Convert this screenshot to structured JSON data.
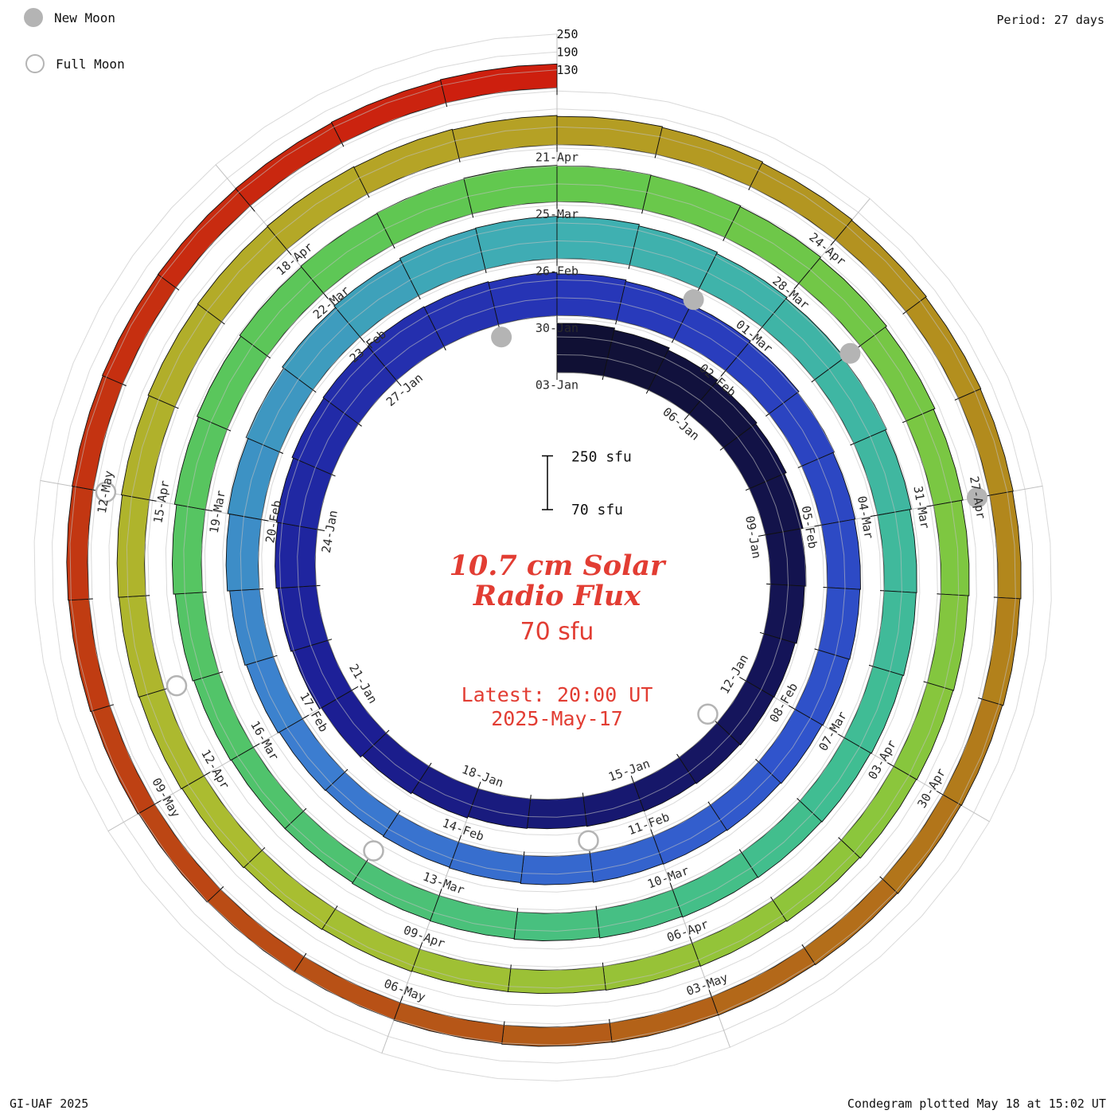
{
  "header": {
    "period": "Period: 27 days"
  },
  "legend": {
    "new_moon": "New Moon",
    "full_moon": "Full Moon"
  },
  "center": {
    "title_line1": "10.7 cm Solar",
    "title_line2": "Radio Flux",
    "flux_label": "70 sfu",
    "latest_line1": "Latest: 20:00 UT",
    "latest_line2": "2025-May-17"
  },
  "footer": {
    "left": "GI-UAF 2025",
    "right": "Condegram plotted May 18 at 15:02 UT"
  },
  "style": {
    "annotation_red": "#e23d33",
    "moon_gray": "#b4b4b4",
    "grid_gray": "#c0c0c0",
    "label_ink": "#2b2b2b"
  },
  "chart_data": {
    "type": "spiral-bar",
    "description": "Condegram: daily 10.7 cm solar radio flux plotted along a 27-day spiral, one bar per day, bar height = flux above 70 sfu baseline, color = date",
    "unit": "sfu",
    "start_date": "2025-01-03",
    "end_date": "2025-05-17",
    "days_per_revolution": 27,
    "baseline_value": 70,
    "grid_values": [
      70,
      130,
      190,
      250
    ],
    "radial_axis_values": [
      250,
      190,
      130
    ],
    "scale_bar": {
      "top_label": "250 sfu",
      "bottom_label": "70 sfu",
      "top_value": 250,
      "bottom_value": 70
    },
    "date_labels": [
      [
        0,
        "03-Jan"
      ],
      [
        3,
        "06-Jan"
      ],
      [
        6,
        "09-Jan"
      ],
      [
        9,
        "12-Jan"
      ],
      [
        12,
        "15-Jan"
      ],
      [
        15,
        "18-Jan"
      ],
      [
        18,
        "21-Jan"
      ],
      [
        21,
        "24-Jan"
      ],
      [
        24,
        "27-Jan"
      ],
      [
        27,
        "30-Jan"
      ],
      [
        30,
        "02-Feb"
      ],
      [
        33,
        "05-Feb"
      ],
      [
        36,
        "08-Feb"
      ],
      [
        39,
        "11-Feb"
      ],
      [
        42,
        "14-Feb"
      ],
      [
        45,
        "17-Feb"
      ],
      [
        48,
        "20-Feb"
      ],
      [
        51,
        "23-Feb"
      ],
      [
        54,
        "26-Feb"
      ],
      [
        57,
        "01-Mar"
      ],
      [
        60,
        "04-Mar"
      ],
      [
        63,
        "07-Mar"
      ],
      [
        66,
        "10-Mar"
      ],
      [
        69,
        "13-Mar"
      ],
      [
        72,
        "16-Mar"
      ],
      [
        75,
        "19-Mar"
      ],
      [
        78,
        "22-Mar"
      ],
      [
        81,
        "25-Mar"
      ],
      [
        84,
        "28-Mar"
      ],
      [
        87,
        "31-Mar"
      ],
      [
        90,
        "03-Apr"
      ],
      [
        93,
        "06-Apr"
      ],
      [
        96,
        "09-Apr"
      ],
      [
        99,
        "12-Apr"
      ],
      [
        102,
        "15-Apr"
      ],
      [
        105,
        "18-Apr"
      ],
      [
        108,
        "21-Apr"
      ],
      [
        111,
        "24-Apr"
      ],
      [
        114,
        "27-Apr"
      ],
      [
        117,
        "30-Apr"
      ],
      [
        120,
        "03-May"
      ],
      [
        123,
        "06-May"
      ],
      [
        126,
        "09-May"
      ],
      [
        129,
        "12-May"
      ]
    ],
    "moon_events": [
      {
        "day_index": 10,
        "phase": "full",
        "date": "2025-01-13"
      },
      {
        "day_index": 26,
        "phase": "new",
        "date": "2025-01-29"
      },
      {
        "day_index": 40,
        "phase": "full",
        "date": "2025-02-12"
      },
      {
        "day_index": 56,
        "phase": "new",
        "date": "2025-02-28"
      },
      {
        "day_index": 70,
        "phase": "full",
        "date": "2025-03-14"
      },
      {
        "day_index": 85,
        "phase": "new",
        "date": "2025-03-29"
      },
      {
        "day_index": 100,
        "phase": "full",
        "date": "2025-04-13"
      },
      {
        "day_index": 114,
        "phase": "new",
        "date": "2025-04-27"
      },
      {
        "day_index": 129,
        "phase": "full",
        "date": "2025-05-12"
      }
    ],
    "flux": [
      235,
      228,
      220,
      210,
      205,
      198,
      190,
      185,
      180,
      178,
      175,
      172,
      170,
      168,
      170,
      175,
      180,
      188,
      195,
      200,
      205,
      210,
      215,
      218,
      220,
      218,
      215,
      210,
      205,
      200,
      195,
      190,
      185,
      182,
      180,
      178,
      175,
      172,
      170,
      168,
      165,
      162,
      160,
      158,
      160,
      165,
      170,
      178,
      185,
      192,
      198,
      205,
      210,
      212,
      210,
      205,
      200,
      195,
      190,
      185,
      180,
      178,
      175,
      172,
      170,
      168,
      165,
      162,
      160,
      158,
      155,
      155,
      158,
      162,
      168,
      175,
      180,
      185,
      188,
      190,
      192,
      190,
      188,
      185,
      180,
      175,
      170,
      165,
      162,
      160,
      158,
      155,
      152,
      150,
      148,
      148,
      150,
      152,
      155,
      158,
      160,
      162,
      165,
      168,
      170,
      172,
      170,
      168,
      165,
      162,
      158,
      155,
      152,
      150,
      148,
      145,
      142,
      140,
      138,
      136,
      135,
      134,
      132,
      130,
      130,
      132,
      135,
      138,
      140,
      142,
      144,
      145,
      146,
      148,
      150
    ],
    "colormap": [
      [
        0.0,
        "#101034"
      ],
      [
        0.07,
        "#15155e"
      ],
      [
        0.13,
        "#1c1f96"
      ],
      [
        0.2,
        "#2736b8"
      ],
      [
        0.27,
        "#3055cc"
      ],
      [
        0.33,
        "#3c7ed0"
      ],
      [
        0.4,
        "#3fafb2"
      ],
      [
        0.47,
        "#40bd92"
      ],
      [
        0.53,
        "#50c36c"
      ],
      [
        0.6,
        "#63c84e"
      ],
      [
        0.67,
        "#8ac63c"
      ],
      [
        0.73,
        "#abbd30"
      ],
      [
        0.79,
        "#b5a526"
      ],
      [
        0.85,
        "#b2881c"
      ],
      [
        0.9,
        "#b35e18"
      ],
      [
        0.95,
        "#c13a12"
      ],
      [
        1.0,
        "#cd1f0e"
      ]
    ]
  }
}
